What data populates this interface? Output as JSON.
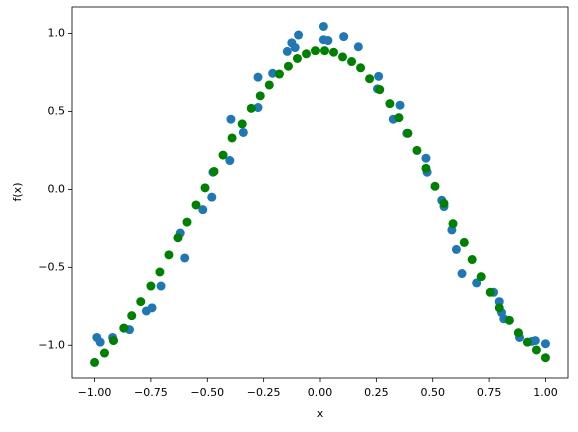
{
  "chart_data": {
    "type": "scatter",
    "x_label": "x",
    "y_label": "f(x)",
    "xlim": [
      -1.1,
      1.1
    ],
    "ylim": [
      -1.21,
      1.17
    ],
    "xticks": [
      {
        "value": -1,
        "label": "−1.00"
      },
      {
        "value": -0.75,
        "label": "−0.75"
      },
      {
        "value": -0.5,
        "label": "−0.50"
      },
      {
        "value": -0.25,
        "label": "−0.25"
      },
      {
        "value": 0,
        "label": "0.00"
      },
      0.25,
      {
        "value": 0.5,
        "label": "0.50"
      },
      0.75,
      {
        "value": 1,
        "label": "1.00"
      }
    ],
    "yticks": [
      {
        "value": -1,
        "label": "−1.0"
      },
      {
        "value": -0.5,
        "label": "−0.5"
      },
      {
        "value": 0,
        "label": "0.0"
      },
      {
        "value": 0.5,
        "label": "0.5"
      },
      {
        "value": 1,
        "label": "1.0"
      }
    ],
    "grid": false,
    "series": [
      {
        "color": "#1f77b4",
        "x": [
          -0.99,
          -0.975,
          -0.92,
          -0.87,
          -0.845,
          -0.77,
          -0.745,
          -0.705,
          -0.62,
          -0.6,
          -0.52,
          -0.48,
          -0.475,
          -0.4,
          -0.395,
          -0.34,
          -0.275,
          -0.275,
          -0.21,
          -0.145,
          -0.125,
          -0.11,
          -0.095,
          0.015,
          0.015,
          0.035,
          0.105,
          0.17,
          0.255,
          0.26,
          0.325,
          0.355,
          0.385,
          0.47,
          0.475,
          0.54,
          0.55,
          0.585,
          0.605,
          0.63,
          0.695,
          0.77,
          0.795,
          0.805,
          0.815,
          0.88,
          0.885,
          0.94,
          0.955,
          1.0
        ],
        "values": [
          -0.95,
          -0.98,
          -0.95,
          -0.89,
          -0.9,
          -0.78,
          -0.76,
          -0.62,
          -0.28,
          -0.44,
          -0.13,
          -0.05,
          0.11,
          0.185,
          0.45,
          0.365,
          0.525,
          0.72,
          0.745,
          0.885,
          0.94,
          0.91,
          0.99,
          1.045,
          0.96,
          0.955,
          0.98,
          0.915,
          0.645,
          0.725,
          0.45,
          0.54,
          0.36,
          0.2,
          0.11,
          -0.07,
          -0.11,
          -0.26,
          -0.385,
          -0.54,
          -0.6,
          -0.66,
          -0.72,
          -0.79,
          -0.83,
          -0.92,
          -0.95,
          -0.975,
          -0.97,
          -0.99
        ]
      },
      {
        "color": "#008000",
        "x": [
          -1.0,
          -0.956,
          -0.916,
          -0.87,
          -0.835,
          -0.795,
          -0.75,
          -0.71,
          -0.67,
          -0.63,
          -0.59,
          -0.55,
          -0.51,
          -0.47,
          -0.43,
          -0.39,
          -0.345,
          -0.305,
          -0.265,
          -0.225,
          -0.18,
          -0.14,
          -0.1,
          -0.06,
          -0.02,
          0.02,
          0.06,
          0.1,
          0.14,
          0.18,
          0.22,
          0.265,
          0.31,
          0.35,
          0.39,
          0.43,
          0.47,
          0.51,
          0.55,
          0.59,
          0.64,
          0.675,
          0.715,
          0.755,
          0.795,
          0.84,
          0.88,
          0.92,
          0.96,
          1.0
        ],
        "values": [
          -1.11,
          -1.05,
          -0.97,
          -0.89,
          -0.81,
          -0.72,
          -0.62,
          -0.53,
          -0.42,
          -0.31,
          -0.21,
          -0.1,
          0.01,
          0.115,
          0.22,
          0.33,
          0.42,
          0.52,
          0.6,
          0.67,
          0.74,
          0.79,
          0.84,
          0.87,
          0.89,
          0.89,
          0.88,
          0.85,
          0.82,
          0.78,
          0.71,
          0.64,
          0.55,
          0.46,
          0.36,
          0.25,
          0.135,
          0.02,
          -0.09,
          -0.22,
          -0.34,
          -0.45,
          -0.56,
          -0.66,
          -0.76,
          -0.84,
          -0.92,
          -0.98,
          -1.03,
          -1.08
        ]
      }
    ]
  }
}
